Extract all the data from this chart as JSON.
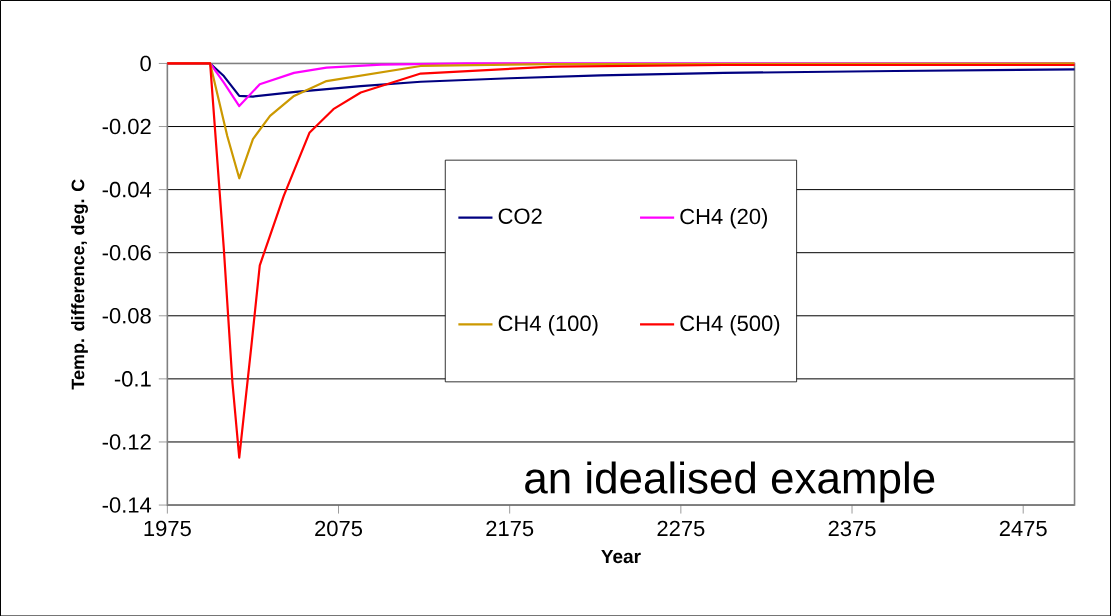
{
  "chart_data": {
    "type": "line",
    "xlabel": "Year",
    "ylabel": "Temp. difference, deg. C",
    "xlim": [
      1975,
      2505
    ],
    "xticks": [
      1975,
      2075,
      2175,
      2275,
      2375,
      2475
    ],
    "ylim": [
      -0.14,
      0
    ],
    "yticks": [
      -0.14,
      -0.12,
      -0.1,
      -0.08,
      -0.06,
      -0.04,
      -0.02,
      0
    ],
    "grid": "y",
    "legend": "center",
    "annotations": [
      "an idealised example"
    ],
    "series": [
      {
        "name": "CO2",
        "color": "#000080",
        "x": [
          1975,
          2000,
          2008,
          2017,
          2025,
          2050,
          2088,
          2123,
          2175,
          2228,
          2300,
          2400,
          2505
        ],
        "values": [
          0,
          0,
          -0.004,
          -0.0103,
          -0.0105,
          -0.009,
          -0.0072,
          -0.0058,
          -0.0047,
          -0.0038,
          -0.003,
          -0.0024,
          -0.0019
        ]
      },
      {
        "name": "CH4 (20)",
        "color": "#ff00ff",
        "x": [
          1975,
          2000,
          2008,
          2017,
          2029,
          2049,
          2068,
          2100,
          2150,
          2505
        ],
        "values": [
          0,
          0,
          -0.0061,
          -0.0135,
          -0.0066,
          -0.003,
          -0.0013,
          -0.0004,
          0,
          0
        ]
      },
      {
        "name": "CH4 (100)",
        "color": "#cc9900",
        "x": [
          1975,
          2000,
          2010,
          2017,
          2025,
          2035,
          2049,
          2068,
          2123,
          2200,
          2505
        ],
        "values": [
          0,
          0,
          -0.023,
          -0.0364,
          -0.024,
          -0.0166,
          -0.0103,
          -0.0056,
          -0.0008,
          -0.0002,
          0
        ]
      },
      {
        "name": "CH4 (500)",
        "color": "#ff0000",
        "x": [
          1975,
          2000,
          2008,
          2013,
          2017,
          2024,
          2029,
          2035,
          2043,
          2058,
          2072,
          2088,
          2123,
          2200,
          2300,
          2505
        ],
        "values": [
          0,
          0,
          -0.0588,
          -0.101,
          -0.125,
          -0.09,
          -0.064,
          -0.0546,
          -0.042,
          -0.022,
          -0.0145,
          -0.0092,
          -0.0032,
          -0.001,
          -0.0005,
          -0.0005
        ]
      }
    ]
  }
}
